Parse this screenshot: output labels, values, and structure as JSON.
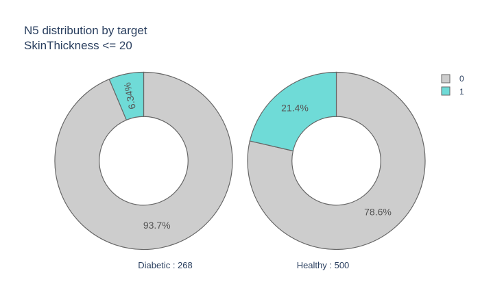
{
  "chart_data": {
    "type": "pie",
    "title_lines": [
      "N5 distribution by target",
      "SkinThickness <= 20"
    ],
    "hole": 0.5,
    "colors": {
      "0": "#cdcdcd",
      "1": "#6fdbd7"
    },
    "line_color": "#666666",
    "legend": {
      "position": "top-right",
      "items": [
        {
          "label": "0",
          "color": "#cdcdcd"
        },
        {
          "label": "1",
          "color": "#6fdbd7"
        }
      ]
    },
    "pies": [
      {
        "caption": "Diabetic : 268",
        "slices": [
          {
            "label": "1",
            "percent": 6.34,
            "text": "6.34%"
          },
          {
            "label": "0",
            "percent": 93.66,
            "text": "93.7%"
          }
        ]
      },
      {
        "caption": "Healthy : 500",
        "slices": [
          {
            "label": "1",
            "percent": 21.4,
            "text": "21.4%"
          },
          {
            "label": "0",
            "percent": 78.6,
            "text": "78.6%"
          }
        ]
      }
    ]
  }
}
